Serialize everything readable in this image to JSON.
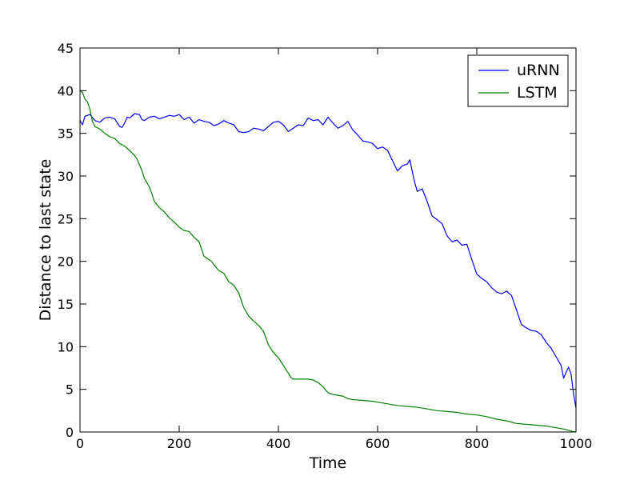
{
  "chart_data": {
    "type": "line",
    "title": "",
    "xlabel": "Time",
    "ylabel": "Distance to last state",
    "xlim": [
      0,
      1000
    ],
    "ylim": [
      0,
      45
    ],
    "xticks": [
      0,
      200,
      400,
      600,
      800,
      1000
    ],
    "yticks": [
      0,
      5,
      10,
      15,
      20,
      25,
      30,
      35,
      40,
      45
    ],
    "grid": false,
    "legend_position": "top-right",
    "series": [
      {
        "name": "uRNN",
        "color": "#0000ff",
        "x": [
          0,
          5,
          10,
          20,
          30,
          40,
          50,
          60,
          70,
          80,
          85,
          90,
          95,
          100,
          110,
          120,
          125,
          130,
          140,
          150,
          160,
          170,
          180,
          190,
          200,
          210,
          220,
          230,
          240,
          250,
          260,
          270,
          280,
          290,
          300,
          310,
          320,
          330,
          340,
          350,
          360,
          370,
          380,
          390,
          400,
          410,
          420,
          430,
          440,
          450,
          460,
          470,
          480,
          490,
          500,
          510,
          520,
          530,
          540,
          550,
          560,
          570,
          580,
          590,
          600,
          610,
          620,
          630,
          640,
          650,
          660,
          665,
          670,
          675,
          680,
          690,
          700,
          710,
          720,
          730,
          740,
          750,
          760,
          770,
          780,
          790,
          800,
          810,
          820,
          830,
          840,
          850,
          860,
          870,
          880,
          890,
          900,
          910,
          920,
          930,
          940,
          950,
          960,
          970,
          975,
          980,
          985,
          990,
          995,
          1000
        ],
        "y": [
          36.5,
          36,
          37,
          37.2,
          36.5,
          36.3,
          36.8,
          36.9,
          36.7,
          35.8,
          35.7,
          36.2,
          36.9,
          36.8,
          37.3,
          37.2,
          36.6,
          36.5,
          36.9,
          37.0,
          36.7,
          36.9,
          37.1,
          37.0,
          37.2,
          36.6,
          36.9,
          36.2,
          36.6,
          36.4,
          36.3,
          35.9,
          36.1,
          36.5,
          36.2,
          36.0,
          35.2,
          35.1,
          35.2,
          35.6,
          35.5,
          35.3,
          35.8,
          36.3,
          36.4,
          36.0,
          35.2,
          35.6,
          36.0,
          35.9,
          36.8,
          36.5,
          36.6,
          36.0,
          36.9,
          36.2,
          35.6,
          35.9,
          36.4,
          35.4,
          34.8,
          34.1,
          34.0,
          33.8,
          33.2,
          33.4,
          33.0,
          31.8,
          30.6,
          31.2,
          31.4,
          31.9,
          30.5,
          29.2,
          28.2,
          28.5,
          27.0,
          25.3,
          24.9,
          24.4,
          23.0,
          22.3,
          22.5,
          21.9,
          22.0,
          20.2,
          18.5,
          18.0,
          17.6,
          16.9,
          16.4,
          16.2,
          16.5,
          16.0,
          14.3,
          12.6,
          12.2,
          11.9,
          11.8,
          11.4,
          10.5,
          9.8,
          8.8,
          7.8,
          6.3,
          7.0,
          7.6,
          6.8,
          4.5,
          2.8
        ]
      },
      {
        "name": "LSTM",
        "color": "#008000",
        "x": [
          0,
          5,
          10,
          15,
          20,
          25,
          30,
          40,
          50,
          60,
          70,
          80,
          90,
          100,
          110,
          115,
          120,
          125,
          130,
          140,
          145,
          150,
          160,
          170,
          180,
          190,
          200,
          210,
          220,
          230,
          240,
          250,
          260,
          265,
          270,
          280,
          290,
          300,
          310,
          320,
          330,
          340,
          350,
          360,
          370,
          380,
          390,
          400,
          410,
          420,
          425,
          430,
          440,
          450,
          460,
          470,
          480,
          490,
          500,
          510,
          520,
          530,
          540,
          550,
          570,
          590,
          600,
          620,
          640,
          660,
          680,
          700,
          720,
          740,
          760,
          780,
          800,
          820,
          840,
          860,
          880,
          900,
          920,
          940,
          960,
          980,
          990,
          995,
          1000
        ],
        "y": [
          40.0,
          39.8,
          39.0,
          38.7,
          37.8,
          36.4,
          35.8,
          35.5,
          35.0,
          34.6,
          34.4,
          33.8,
          33.5,
          33.0,
          32.4,
          32.0,
          31.3,
          30.6,
          29.7,
          28.7,
          27.9,
          27.0,
          26.3,
          25.8,
          25.1,
          24.6,
          24.0,
          23.6,
          23.5,
          22.8,
          22.3,
          20.6,
          20.2,
          20.0,
          19.6,
          18.9,
          18.6,
          17.6,
          17.2,
          16.3,
          14.6,
          13.6,
          13.0,
          12.5,
          11.8,
          10.2,
          9.3,
          8.7,
          7.8,
          6.9,
          6.4,
          6.2,
          6.2,
          6.2,
          6.2,
          6.1,
          5.8,
          5.3,
          4.6,
          4.4,
          4.3,
          4.2,
          3.9,
          3.8,
          3.7,
          3.6,
          3.5,
          3.3,
          3.1,
          3.0,
          2.9,
          2.7,
          2.5,
          2.4,
          2.3,
          2.1,
          2.0,
          1.8,
          1.5,
          1.3,
          1.0,
          0.9,
          0.8,
          0.7,
          0.5,
          0.3,
          0.1,
          0.05,
          0.0
        ]
      }
    ]
  }
}
